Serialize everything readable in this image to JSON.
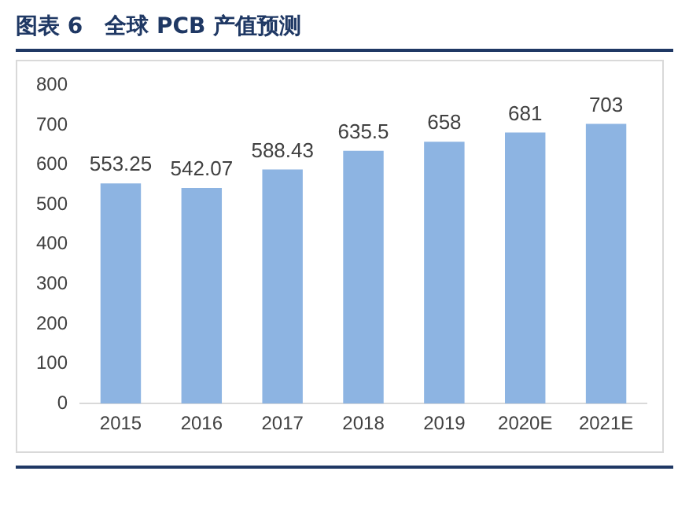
{
  "chart_data": {
    "type": "bar",
    "title": "图表 6　全球 PCB 产值预测",
    "categories": [
      "2015",
      "2016",
      "2017",
      "2018",
      "2019",
      "2020E",
      "2021E"
    ],
    "values": [
      553.25,
      542.07,
      588.43,
      635.5,
      658,
      681,
      703
    ],
    "value_labels": [
      "553.25",
      "542.07",
      "588.43",
      "635.5",
      "658",
      "681",
      "703"
    ],
    "color": "#8db4e2",
    "ylim": [
      0,
      800
    ],
    "yticks": [
      0,
      100,
      200,
      300,
      400,
      500,
      600,
      700,
      800
    ],
    "grid": false,
    "legend": false
  }
}
